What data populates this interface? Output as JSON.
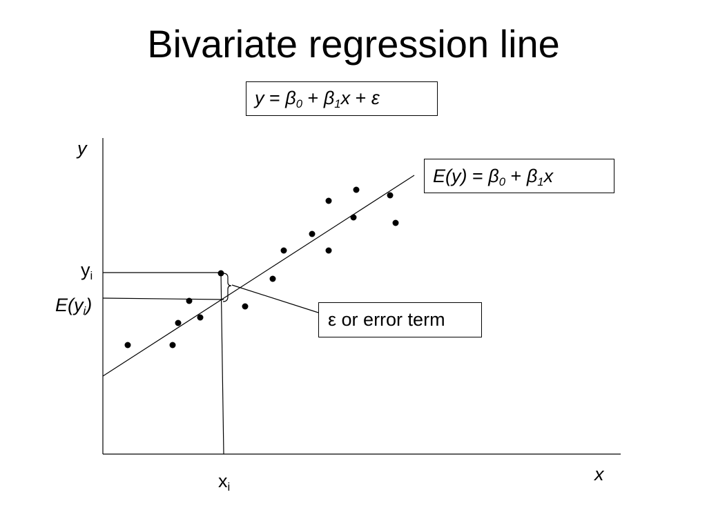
{
  "slide": {
    "title": "Bivariate regression line"
  },
  "model_equation": {
    "y": "y",
    "eq": " = ",
    "beta": "β",
    "zero": "0",
    "plus1": " + ",
    "one": "1",
    "x": "x",
    "plus2": " + ",
    "eps": "ε"
  },
  "mean_equation": {
    "lhs": "E(y)",
    "eq": " = ",
    "beta": "β",
    "zero": "0",
    "plus": " + ",
    "one": "1",
    "x": "x"
  },
  "error_label": "ε or error term",
  "axes": {
    "y_label": "y",
    "x_label": "x"
  },
  "markers": {
    "y": "y",
    "i": "i",
    "E": "E(y",
    "close": ")",
    "x": "x"
  },
  "diagram": {
    "icons": [
      "curly-brace-icon"
    ],
    "line_color": "#000000",
    "dot_color": "#000000"
  }
}
